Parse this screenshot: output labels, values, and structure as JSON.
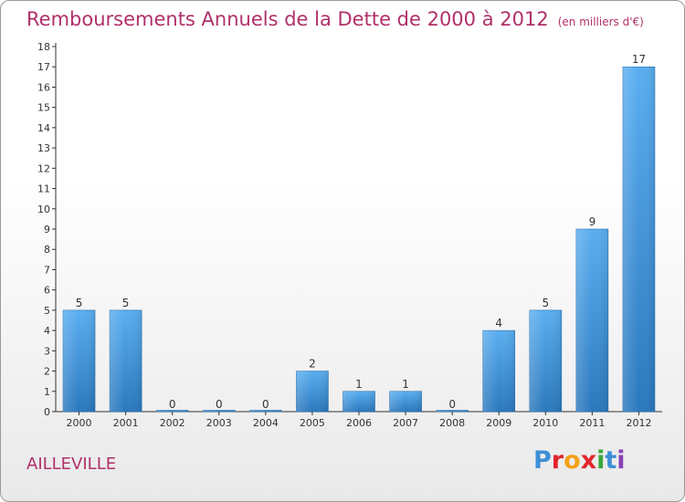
{
  "header": {
    "title": "Remboursements Annuels de la Dette de 2000 à 2012",
    "unit": "(en milliers d'€)"
  },
  "footer": {
    "town": "AILLEVILLE",
    "logo": "Proxiti"
  },
  "colors": {
    "title": "#b0306a",
    "bar_top": "#5aaef0",
    "bar_bottom": "#2a78bd"
  },
  "chart_data": {
    "type": "bar",
    "title": "Remboursements Annuels de la Dette de 2000 à 2012",
    "categories": [
      "2000",
      "2001",
      "2002",
      "2003",
      "2004",
      "2005",
      "2006",
      "2007",
      "2008",
      "2009",
      "2010",
      "2011",
      "2012"
    ],
    "values": [
      5,
      5,
      0,
      0,
      0,
      2,
      1,
      1,
      0,
      4,
      5,
      9,
      17
    ],
    "ylim": [
      0,
      18
    ],
    "yticks": [
      0,
      1,
      2,
      3,
      4,
      5,
      6,
      7,
      8,
      9,
      10,
      11,
      12,
      13,
      14,
      15,
      16,
      17,
      18
    ],
    "grid": false,
    "legend": "none"
  }
}
